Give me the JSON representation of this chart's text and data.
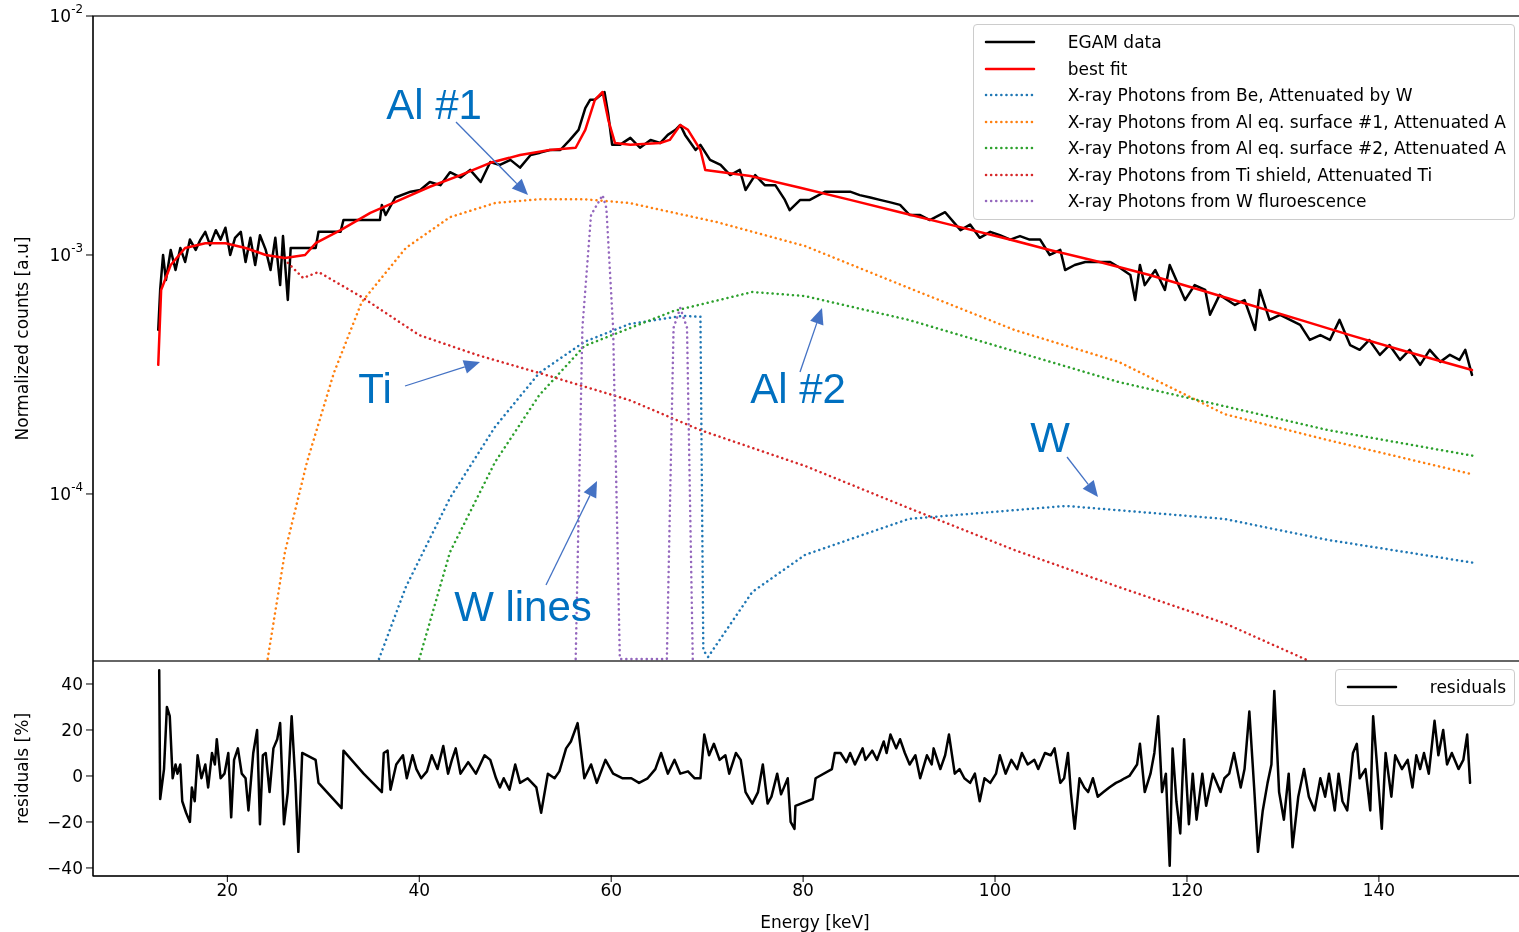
{
  "chart_data": [
    {
      "type": "line",
      "ylabel": "Normalized counts [a.u]",
      "log": "y",
      "legend": "top right",
      "tick_labels": "y",
      "xlim": [
        6,
        154.6
      ],
      "ylim": [
        2e-05,
        0.01
      ],
      "yticks": [
        {
          "value": 0.0001,
          "label": "10$^{-4}$"
        },
        {
          "value": 0.001,
          "label": "10$^{-3}$"
        },
        {
          "value": 0.01,
          "label": "10$^{-2}$"
        }
      ],
      "annotations": [
        "Al #1",
        "Ti",
        "Al #2",
        "W",
        "W lines"
      ],
      "series": [
        {
          "name": "EGAM data",
          "color": "#000000",
          "line_style": "solid",
          "x": [
            12.8,
            13.0,
            13.3,
            13.6,
            14.1,
            14.6,
            15.1,
            15.6,
            16.1,
            16.7,
            17.2,
            17.7,
            18.2,
            18.8,
            19.3,
            19.8,
            20.3,
            20.8,
            21.4,
            21.9,
            22.4,
            22.9,
            23.4,
            24.0,
            24.5,
            25.0,
            25.5,
            25.8,
            26.3,
            26.6,
            27.6,
            29.2,
            29.5,
            31.8,
            32.1,
            35.9,
            36.1,
            36.5,
            37.5,
            39.1,
            40.1,
            41.1,
            42.2,
            43.2,
            44.3,
            45.3,
            46.4,
            47.4,
            48.4,
            49.5,
            50.5,
            51.6,
            52.6,
            53.6,
            54.7,
            55.7,
            56.6,
            57.3,
            57.8,
            58.3,
            58.9,
            59.3,
            59.7,
            60.1,
            60.9,
            62.0,
            63.0,
            64.1,
            65.1,
            65.9,
            66.7,
            67.2,
            67.7,
            68.8,
            69.3,
            70.3,
            71.4,
            72.4,
            73.4,
            74.0,
            75.0,
            76.0,
            77.1,
            78.1,
            78.6,
            79.7,
            80.7,
            82.3,
            83.9,
            84.9,
            85.9,
            87.0,
            88.0,
            89.1,
            90.1,
            91.1,
            92.2,
            93.2,
            94.8,
            96.4,
            97.4,
            98.4,
            99.5,
            100.5,
            101.6,
            102.6,
            103.6,
            104.7,
            105.7,
            106.8,
            107.3,
            108.3,
            109.4,
            110.4,
            112.0,
            113.0,
            114.1,
            114.6,
            115.1,
            115.6,
            116.7,
            117.7,
            118.2,
            119.8,
            120.8,
            121.9,
            122.4,
            123.4,
            125.0,
            126.0,
            127.1,
            127.6,
            128.6,
            129.7,
            131.8,
            132.8,
            133.9,
            134.9,
            135.9,
            137.0,
            138.0,
            139.0,
            140.1,
            141.1,
            142.2,
            143.2,
            144.3,
            145.3,
            146.4,
            147.4,
            148.4,
            149.0,
            149.7
          ],
          "values": [
            0.000486,
            0.000714,
            0.001,
            0.000785,
            0.00105,
            0.000865,
            0.00107,
            0.000935,
            0.00116,
            0.00105,
            0.00116,
            0.00125,
            0.0011,
            0.00127,
            0.00116,
            0.0013,
            0.001,
            0.00118,
            0.00125,
            0.000935,
            0.00118,
            0.000908,
            0.00121,
            0.00105,
            0.000865,
            0.00118,
            0.000748,
            0.0012,
            0.000648,
            0.00107,
            0.00107,
            0.00107,
            0.00125,
            0.00125,
            0.0014,
            0.0014,
            0.00162,
            0.00147,
            0.00174,
            0.00184,
            0.00187,
            0.00202,
            0.00196,
            0.00222,
            0.00211,
            0.00227,
            0.00202,
            0.00245,
            0.00238,
            0.0025,
            0.00232,
            0.00262,
            0.00268,
            0.00275,
            0.00275,
            0.00303,
            0.00334,
            0.00412,
            0.00446,
            0.00446,
            0.00467,
            0.00481,
            0.00386,
            0.00289,
            0.00289,
            0.00309,
            0.00281,
            0.00303,
            0.00294,
            0.00318,
            0.00334,
            0.0035,
            0.00318,
            0.00275,
            0.00289,
            0.0025,
            0.00238,
            0.00216,
            0.00227,
            0.00187,
            0.00216,
            0.00196,
            0.00196,
            0.0017,
            0.00154,
            0.0017,
            0.0017,
            0.00184,
            0.00184,
            0.00184,
            0.00178,
            0.00174,
            0.0017,
            0.00166,
            0.00162,
            0.00147,
            0.00147,
            0.0014,
            0.00151,
            0.00127,
            0.00134,
            0.00118,
            0.00125,
            0.00121,
            0.00116,
            0.0012,
            0.00116,
            0.00116,
            0.001,
            0.00105,
            0.000865,
            0.000908,
            0.000935,
            0.000935,
            0.000935,
            0.000884,
            0.000824,
            0.000648,
            0.000908,
            0.000748,
            0.000865,
            0.000714,
            0.000908,
            0.000648,
            0.000748,
            0.000714,
            0.000562,
            0.000681,
            0.000618,
            0.000648,
            0.000486,
            0.000714,
            0.000535,
            0.000562,
            0.00051,
            0.000441,
            0.000462,
            0.000441,
            0.000535,
            0.00042,
            0.000401,
            0.000441,
            0.000382,
            0.00042,
            0.000364,
            0.000401,
            0.000347,
            0.000401,
            0.000357,
            0.000382,
            0.000364,
            0.000401,
            0.000315
          ]
        },
        {
          "name": "best fit",
          "color": "#ff0000",
          "line_style": "solid",
          "x": [
            12.8,
            13.1,
            14.1,
            15.6,
            17.7,
            19.8,
            21.9,
            24.0,
            26.0,
            28.1,
            29.2,
            31.8,
            34.9,
            38.0,
            41.1,
            44.3,
            47.4,
            50.5,
            53.6,
            56.3,
            57.3,
            58.3,
            59.1,
            59.7,
            60.4,
            62.0,
            65.1,
            66.1,
            67.2,
            68.0,
            69.3,
            69.8,
            74.5,
            79.7,
            84.9,
            90.1,
            95.3,
            100.5,
            105.7,
            110.9,
            116.1,
            121.4,
            126.6,
            131.8,
            137.0,
            142.2,
            149.7
          ],
          "values": [
            0.000347,
            0.000714,
            0.000908,
            0.00107,
            0.00112,
            0.00112,
            0.00107,
            0.001,
            0.000971,
            0.001,
            0.00112,
            0.00127,
            0.0015,
            0.0017,
            0.00193,
            0.00216,
            0.00243,
            0.00262,
            0.00275,
            0.00281,
            0.00334,
            0.00446,
            0.00481,
            0.00367,
            0.00294,
            0.00289,
            0.00294,
            0.00303,
            0.0035,
            0.00334,
            0.00275,
            0.00227,
            0.00214,
            0.00191,
            0.0017,
            0.00151,
            0.00134,
            0.00119,
            0.00105,
            0.000935,
            0.000824,
            0.000714,
            0.000618,
            0.000535,
            0.000462,
            0.000401,
            0.00033
          ]
        },
        {
          "name": "X-ray Photons from Be, Attenuated by W",
          "color": "#1f77b4",
          "line_style": "dotted",
          "x": [
            35.8,
            38.6,
            43.2,
            47.9,
            52.5,
            57.2,
            61.9,
            67.4,
            69.3,
            69.6,
            70.1,
            74.7,
            80.2,
            91.0,
            107.4,
            123.9,
            134.7,
            150.0
          ],
          "values": [
            2.04e-05,
            4.08e-05,
            9.62e-05,
            0.000191,
            0.000321,
            0.000433,
            0.000514,
            0.000556,
            0.000551,
            2.22e-05,
            2.08e-05,
            3.89e-05,
            5.56e-05,
            7.86e-05,
            8.91e-05,
            7.86e-05,
            6.42e-05,
            5.14e-05
          ]
        },
        {
          "name": "X-ray Photons from Al eq. surface #1, Attenuated A",
          "color": "#ff7f0e",
          "line_style": "dotted",
          "x": [
            24.2,
            26.0,
            28.3,
            31.1,
            34.0,
            38.6,
            43.2,
            47.9,
            52.5,
            57.2,
            61.9,
            71.1,
            80.2,
            91.0,
            102.0,
            112.9,
            123.9,
            134.7,
            149.7
          ],
          "values": [
            2.04e-05,
            5.71e-05,
            0.000136,
            0.000321,
            0.000635,
            0.00107,
            0.00144,
            0.00165,
            0.00171,
            0.00171,
            0.00165,
            0.00137,
            0.00109,
            0.000728,
            0.000486,
            0.000357,
            0.000216,
            0.000168,
            0.000121
          ]
        },
        {
          "name": "X-ray Photons from Al eq. surface #2, Attenuated A",
          "color": "#2ca02c",
          "line_style": "dotted",
          "x": [
            40.0,
            43.2,
            47.9,
            52.5,
            57.2,
            66.5,
            74.7,
            80.2,
            91.0,
            102.0,
            112.9,
            123.9,
            134.7,
            150.0
          ],
          "values": [
            2.04e-05,
            5.71e-05,
            0.000136,
            0.000259,
            0.000416,
            0.000583,
            0.0007,
            0.000673,
            0.000535,
            0.000396,
            0.000294,
            0.000233,
            0.000185,
            0.000144
          ]
        },
        {
          "name": "X-ray Photons from Ti shield, Attenuated Ti",
          "color": "#d62728",
          "line_style": "dotted",
          "x": [
            26.3,
            27.9,
            29.5,
            34.0,
            40.0,
            46.0,
            52.5,
            61.9,
            69.3,
            80.2,
            91.0,
            102.0,
            112.9,
            123.9,
            132.5
          ],
          "values": [
            0.000927,
            0.000801,
            0.000849,
            0.000667,
            0.000462,
            0.000382,
            0.000321,
            0.000247,
            0.000185,
            0.000131,
            8.73e-05,
            5.83e-05,
            4.08e-05,
            2.88e-05,
            2.02e-05
          ]
        },
        {
          "name": "X-ray Photons from W fluroescence",
          "color": "#9467bd",
          "line_style": "dotted",
          "x": [
            56.3,
            57.0,
            57.9,
            59.1,
            59.5,
            60.2,
            60.9,
            65.8,
            66.5,
            67.2,
            67.9,
            68.5
          ],
          "values": [
            2.04e-05,
            0.000496,
            0.00147,
            0.00178,
            0.00157,
            0.000496,
            2.04e-05,
            2.04e-05,
            0.000496,
            0.0006,
            0.000496,
            2.04e-05
          ]
        }
      ]
    },
    {
      "type": "line",
      "xlabel": "Energy [keV]",
      "ylabel": "residuals [%]",
      "legend": "top right",
      "xlim": [
        6,
        154.6
      ],
      "xticks": [
        20,
        40,
        60,
        80,
        100,
        120,
        140
      ],
      "ylim": [
        -43.5,
        50
      ],
      "yticks": [
        {
          "value": -40,
          "label": "−40"
        },
        {
          "value": -20,
          "label": "−20"
        },
        0,
        20,
        40
      ],
      "series": [
        {
          "name": "residuals",
          "color": "#000000",
          "line_style": "solid",
          "x": [
            12.9,
            13.0,
            13.4,
            13.7,
            14.0,
            14.3,
            14.6,
            14.8,
            15.1,
            15.3,
            15.7,
            16.1,
            16.3,
            16.6,
            16.9,
            17.3,
            17.7,
            18.0,
            18.4,
            18.7,
            18.9,
            19.3,
            19.7,
            20.1,
            20.4,
            20.7,
            21.1,
            21.5,
            21.9,
            22.2,
            22.7,
            23.1,
            23.4,
            23.7,
            24.0,
            24.4,
            24.8,
            25.2,
            25.5,
            25.9,
            26.3,
            26.7,
            27.1,
            27.4,
            27.8,
            29.2,
            29.5,
            31.9,
            32.1,
            34.2,
            36.1,
            36.3,
            36.7,
            37.0,
            37.6,
            38.3,
            38.7,
            39.3,
            39.7,
            40.2,
            40.8,
            41.3,
            41.9,
            42.5,
            43.0,
            43.4,
            43.8,
            44.3,
            45.1,
            45.9,
            46.8,
            47.4,
            48.0,
            48.4,
            48.8,
            49.4,
            50.0,
            50.5,
            51.3,
            52.2,
            52.7,
            53.4,
            54.1,
            54.6,
            55.3,
            55.8,
            56.5,
            57.2,
            57.9,
            58.5,
            59.4,
            60.2,
            61.2,
            62.1,
            62.9,
            63.8,
            64.6,
            65.2,
            65.9,
            66.6,
            67.2,
            68.0,
            68.7,
            69.3,
            69.7,
            70.2,
            70.7,
            71.3,
            71.9,
            72.3,
            73.0,
            73.5,
            74.0,
            74.7,
            75.3,
            75.8,
            76.3,
            76.7,
            77.3,
            77.7,
            78.4,
            78.7,
            79.1,
            79.2,
            81.0,
            81.3,
            83.0,
            83.3,
            83.9,
            84.5,
            84.9,
            85.4,
            86.2,
            86.5,
            87.2,
            87.7,
            88.4,
            88.7,
            89.1,
            89.7,
            90.1,
            90.6,
            91.1,
            91.7,
            92.2,
            92.9,
            93.4,
            93.6,
            94.3,
            94.8,
            95.2,
            95.8,
            96.3,
            96.8,
            97.4,
            97.9,
            98.4,
            98.9,
            99.5,
            100.1,
            100.5,
            101.1,
            101.7,
            102.3,
            102.8,
            103.4,
            104.1,
            104.5,
            105.2,
            105.8,
            106.2,
            106.8,
            107.2,
            107.6,
            107.9,
            108.3,
            108.8,
            109.3,
            109.7,
            110.2,
            110.7,
            111.3,
            111.9,
            112.6,
            113.1,
            113.5,
            114.0,
            114.8,
            115.1,
            115.6,
            116.2,
            116.6,
            117.0,
            117.4,
            117.8,
            118.2,
            118.5,
            118.9,
            119.3,
            119.7,
            120.2,
            120.6,
            121.0,
            121.6,
            122.0,
            122.7,
            123.5,
            123.9,
            124.4,
            124.9,
            125.6,
            126.0,
            126.5,
            127.0,
            127.4,
            127.9,
            128.4,
            128.8,
            129.1,
            129.6,
            130.1,
            130.6,
            131.0,
            131.6,
            132.2,
            132.7,
            133.3,
            133.9,
            134.4,
            134.8,
            135.4,
            135.8,
            136.2,
            136.7,
            137.3,
            137.7,
            138.0,
            138.6,
            139.1,
            139.4,
            139.8,
            140.3,
            140.7,
            141.3,
            141.7,
            142.4,
            143.0,
            143.5,
            143.9,
            144.3,
            144.7,
            145.2,
            145.8,
            146.2,
            146.7,
            147.1,
            147.6,
            148.3,
            148.8,
            149.2,
            149.5
          ],
          "values": [
            46,
            -10,
            3,
            30,
            26,
            -1,
            5,
            1,
            5,
            -11,
            -16,
            -20,
            -5,
            -11,
            9,
            -1,
            5,
            -5,
            10,
            5,
            16,
            -1,
            1,
            10,
            -18,
            7,
            12,
            1,
            -1,
            -15,
            10,
            20,
            -21,
            9,
            10,
            -7,
            12,
            16,
            23,
            -21,
            -7,
            26,
            -3,
            -33,
            10,
            7,
            -3,
            -14,
            11,
            1,
            -7,
            10,
            11,
            -6,
            5,
            9,
            -1,
            9,
            3,
            -1,
            2,
            9,
            3,
            13,
            1,
            7,
            12,
            1,
            6,
            1,
            9,
            7,
            -1,
            -5,
            -1,
            -6,
            5,
            -3,
            -1,
            -5,
            -16,
            1,
            -1,
            2,
            12,
            15,
            23,
            -1,
            5,
            -3,
            7,
            1,
            -1,
            -1,
            -3,
            -1,
            3,
            10,
            1,
            7,
            1,
            2,
            -1,
            -1,
            18,
            9,
            14,
            7,
            9,
            1,
            10,
            7,
            -7,
            -12,
            -7,
            5,
            -12,
            -9,
            1,
            -8,
            -1,
            -20,
            -23,
            -13,
            -10,
            -1,
            3,
            10,
            10,
            6,
            10,
            5,
            12,
            7,
            11,
            7,
            15,
            10,
            18,
            12,
            16,
            10,
            5,
            9,
            -1,
            9,
            5,
            12,
            3,
            9,
            18,
            1,
            3,
            -1,
            -3,
            1,
            -11,
            -1,
            -3,
            1,
            9,
            1,
            7,
            3,
            10,
            5,
            7,
            3,
            10,
            9,
            12,
            -3,
            -1,
            10,
            -7,
            -23,
            -1,
            -5,
            -7,
            -1,
            -9,
            -7,
            -5,
            -3,
            -2,
            -1,
            0,
            5,
            14,
            -7,
            1,
            10,
            26,
            -7,
            1,
            -39,
            12,
            -11,
            -25,
            16,
            -21,
            1,
            -19,
            1,
            -13,
            1,
            -7,
            -1,
            1,
            10,
            -5,
            3,
            28,
            -5,
            -33,
            -15,
            -3,
            5,
            37,
            -7,
            -19,
            1,
            -31,
            -9,
            3,
            -9,
            -15,
            -1,
            -9,
            1,
            -15,
            1,
            -11,
            -15,
            10,
            14,
            -1,
            3,
            -15,
            26,
            5,
            -23,
            10,
            -9,
            9,
            3,
            7,
            -5,
            9,
            3,
            10,
            1,
            24,
            9,
            20,
            5,
            10,
            3,
            7,
            18,
            -3
          ]
        }
      ]
    }
  ]
}
